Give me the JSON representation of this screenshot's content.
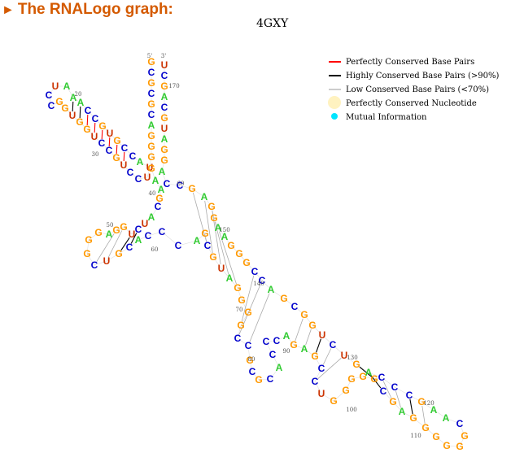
{
  "header": {
    "title": "The RNALogo graph:",
    "subtitle": "4GXY"
  },
  "colors": {
    "A": "#33cc33",
    "C": "#0000cc",
    "G": "#ff9900",
    "U": "#cc3300"
  },
  "legend": [
    {
      "label": "Perfectly Conserved Base Pairs",
      "kind": "line",
      "color": "#ff0000"
    },
    {
      "label": "Highly Conserved Base Pairs (>90%)",
      "kind": "line",
      "color": "#000000"
    },
    {
      "label": "Low Conserved Base Pairs (<70%)",
      "kind": "line",
      "color": "#cccccc"
    },
    {
      "label": "Perfectly Conserved Nucleotide",
      "kind": "circle",
      "color": "#fff2c0"
    },
    {
      "label": "Mutual Information",
      "kind": "dot",
      "color": "#00e5ff"
    }
  ],
  "ends": [
    "5'",
    "3'"
  ],
  "positions": [
    "20",
    "30",
    "40",
    "50",
    "60",
    "60",
    "70",
    "80",
    "90",
    "100",
    "110",
    "120",
    "130",
    "140",
    "150",
    "170"
  ],
  "bases": "GCGCGCAGGGUUCCUGCCUGGUGGCCUAAACCGUGCCAGAAGCAUCUGGAGGGCUGCACCCAGCGUAGGGGCCGCGCACCCAGAGCCUGGGGGCGAGGGGGGCAAGCCCAGUCUGGCGACCGGGAAGGAGCCAGGAUGCAGCUCGGGCUAGGCCAUGCUCUAGCCUGGCGC"
}
